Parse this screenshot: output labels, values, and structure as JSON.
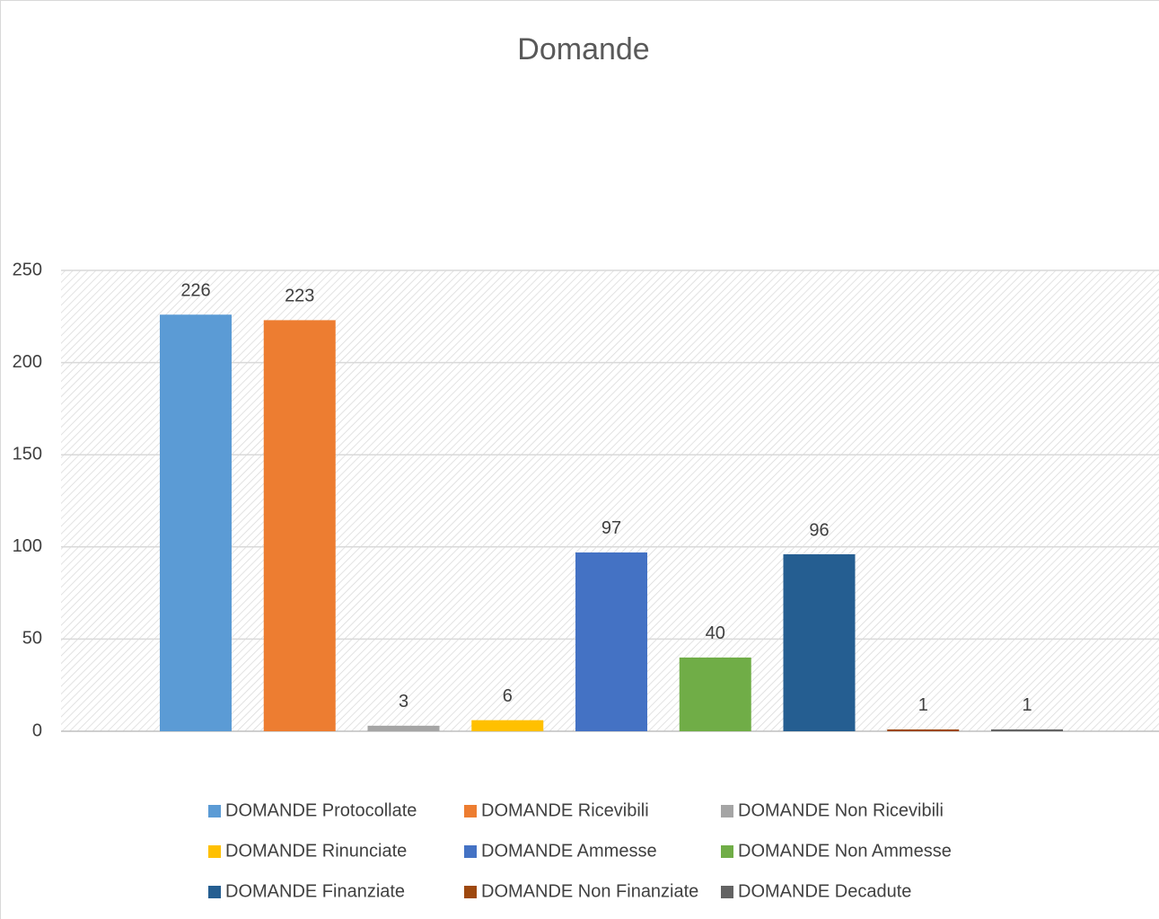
{
  "chart_data": {
    "type": "bar",
    "title": "Domande",
    "series": [
      {
        "name": "DOMANDE Protocollate",
        "color": "#5b9bd5",
        "values": [
          226
        ]
      },
      {
        "name": "DOMANDE Ricevibili",
        "color": "#ed7d31",
        "values": [
          223
        ]
      },
      {
        "name": "DOMANDE Non Ricevibili",
        "color": "#a5a5a5",
        "values": [
          3
        ]
      },
      {
        "name": "DOMANDE Rinunciate",
        "color": "#ffc000",
        "values": [
          6
        ]
      },
      {
        "name": "DOMANDE Ammesse",
        "color": "#4472c4",
        "values": [
          97
        ]
      },
      {
        "name": "DOMANDE Non Ammesse",
        "color": "#70ad47",
        "values": [
          40
        ]
      },
      {
        "name": "DOMANDE Finanziate",
        "color": "#255e91",
        "values": [
          96
        ]
      },
      {
        "name": "DOMANDE Non Finanziate",
        "color": "#9e480e",
        "values": [
          1
        ]
      },
      {
        "name": "DOMANDE Decadute",
        "color": "#636363",
        "values": [
          1
        ]
      }
    ],
    "ylim": [
      0,
      250
    ],
    "yticks": [
      0,
      50,
      100,
      150,
      200,
      250
    ],
    "grid": true,
    "legend": "bottom"
  }
}
